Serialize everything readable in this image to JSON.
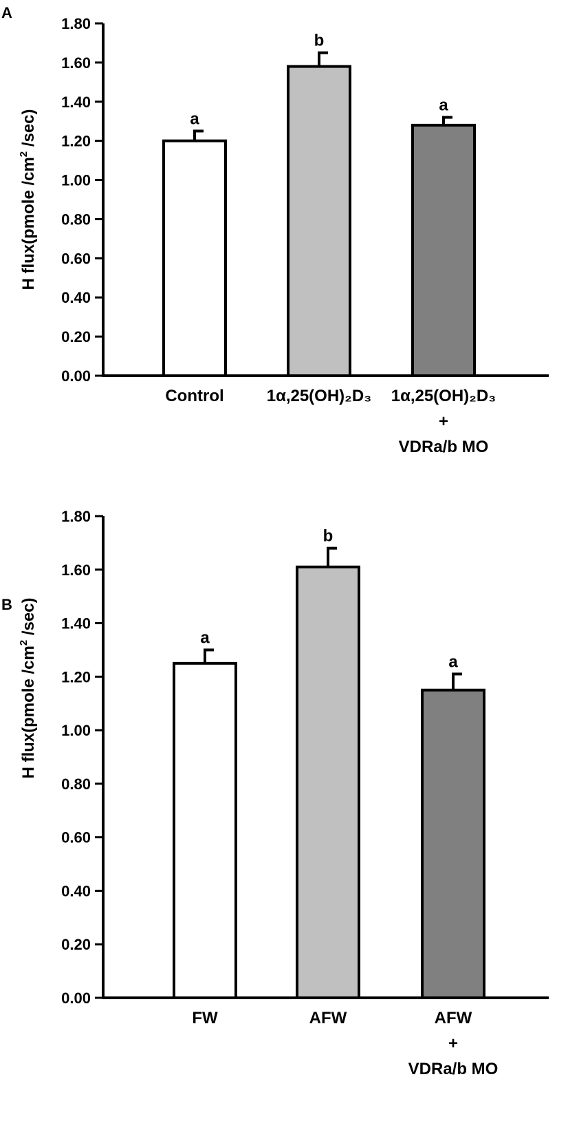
{
  "chart_data": [
    {
      "type": "bar",
      "panel_label": "A",
      "ylabel": {
        "main": "H flux(pmole /cm",
        "sup": "2",
        "tail": " /sec)"
      },
      "ylim": [
        0,
        1.8
      ],
      "yticks": [
        "0.00",
        "0.20",
        "0.40",
        "0.60",
        "0.80",
        "1.00",
        "1.20",
        "1.40",
        "1.60",
        "1.80"
      ],
      "categories": [
        {
          "label": "Control"
        },
        {
          "label": "1α,25(OH)₂D₃"
        },
        {
          "label": "1α,25(OH)₂D₃",
          "line2": "+",
          "line3": "VDRa/b MO"
        }
      ],
      "values": [
        1.2,
        1.58,
        1.28
      ],
      "errors": [
        0.05,
        0.07,
        0.04
      ],
      "significance": [
        "a",
        "b",
        "a"
      ],
      "colors": [
        "#ffffff",
        "#c0c0c0",
        "#808080"
      ]
    },
    {
      "type": "bar",
      "panel_label": "B",
      "ylabel": {
        "main": "H flux(pmole /cm",
        "sup": "2",
        "tail": " /sec)"
      },
      "ylim": [
        0,
        1.8
      ],
      "yticks": [
        "0.00",
        "0.20",
        "0.40",
        "0.60",
        "0.80",
        "1.00",
        "1.20",
        "1.40",
        "1.60",
        "1.80"
      ],
      "categories": [
        {
          "label": "FW"
        },
        {
          "label": "AFW"
        },
        {
          "label": "AFW",
          "line2": "+",
          "line3": "VDRa/b MO"
        }
      ],
      "values": [
        1.25,
        1.61,
        1.15
      ],
      "errors": [
        0.05,
        0.07,
        0.06
      ],
      "significance": [
        "a",
        "b",
        "a"
      ],
      "colors": [
        "#ffffff",
        "#c0c0c0",
        "#808080"
      ]
    }
  ]
}
